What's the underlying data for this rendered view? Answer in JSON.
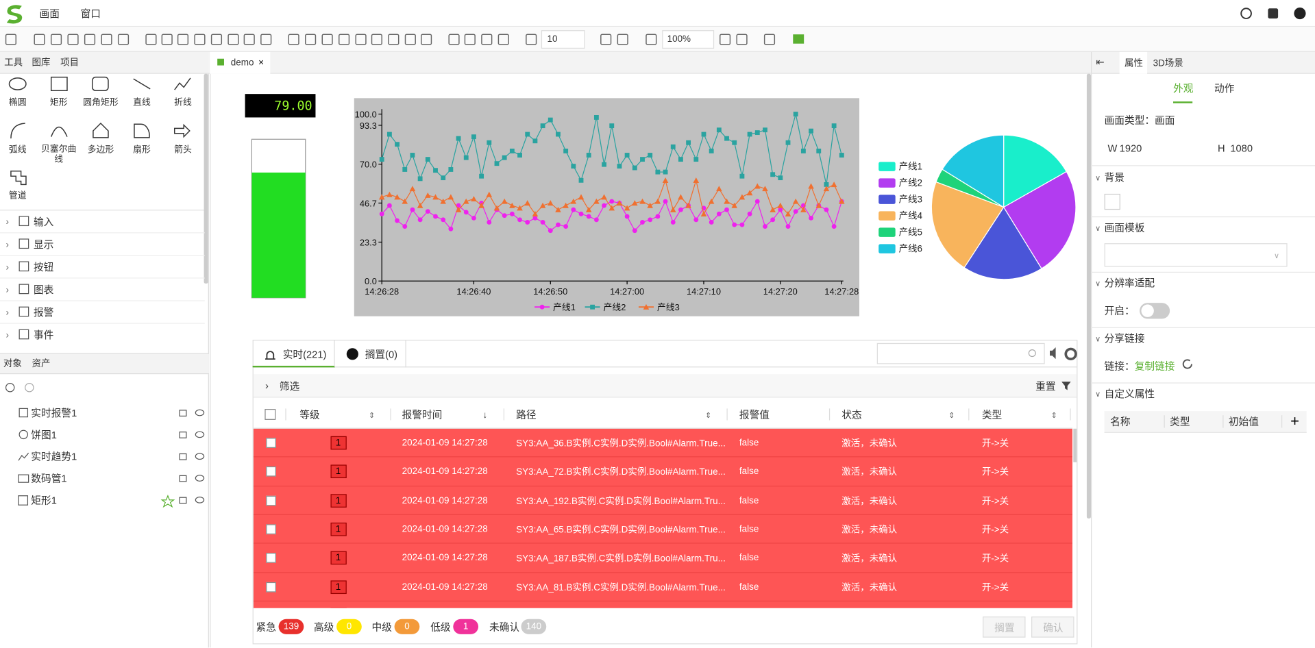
{
  "menu": [
    "画面",
    "窗口"
  ],
  "toolbar": {
    "grid_size": "10",
    "zoom": "100%"
  },
  "left_tabs": [
    "工具",
    "图库",
    "项目"
  ],
  "tools": [
    "椭圆",
    "矩形",
    "圆角矩形",
    "直线",
    "折线",
    "弧线",
    "贝塞尔曲线",
    "多边形",
    "扇形",
    "箭头",
    "管道"
  ],
  "groups": [
    "输入",
    "显示",
    "按钮",
    "图表",
    "报警",
    "事件"
  ],
  "object_tabs": [
    "对象",
    "资产"
  ],
  "objects": [
    "实时报警1",
    "饼图1",
    "实时趋势1",
    "数码管1",
    "矩形1"
  ],
  "doc_tab": "demo",
  "digital_display": "79.00",
  "gauge": {
    "value": 79,
    "lim": [
      0,
      100
    ],
    "color": "#22dd22"
  },
  "chart_data": [
    {
      "type": "line",
      "x": [
        0,
        1,
        2,
        3,
        4,
        5,
        6,
        7,
        8,
        9,
        10,
        11,
        12,
        13,
        14,
        15,
        16,
        17,
        18,
        19,
        20,
        21,
        22,
        23,
        24,
        25,
        26,
        27,
        28,
        29,
        30,
        31,
        32,
        33,
        34,
        35,
        36,
        37,
        38,
        39,
        40,
        41,
        42,
        43,
        44,
        45,
        46,
        47,
        48,
        49,
        50,
        51,
        52,
        53,
        54,
        55,
        56,
        57,
        58,
        59,
        60
      ],
      "series": [
        {
          "name": "产线1",
          "color": "#ee22ee",
          "marker": "circle",
          "values": [
            40.2,
            45.2,
            36.2,
            32.7,
            42.7,
            36.7,
            41.7,
            38.7,
            36.7,
            31.2,
            45.2,
            41.2,
            37.7,
            46.7,
            35.2,
            42.7,
            39.2,
            40.2,
            36.7,
            35.2,
            37.7,
            35.2,
            30.2,
            33.7,
            32.7,
            42.7,
            40.2,
            38.7,
            36.7,
            45.2,
            47.7,
            46.7,
            38.7,
            30.2,
            35.2,
            36.7,
            38.7,
            47.7,
            35.2,
            42.7,
            45.2,
            36.7,
            43.7,
            35.2,
            40.2,
            42.7,
            33.7,
            33.7,
            40.2,
            47.7,
            32.7,
            36.7,
            42.7,
            32.7,
            41.7,
            45.2,
            37.7,
            45.2,
            42.7,
            32.7,
            47.7
          ]
        },
        {
          "name": "产线2",
          "color": "#2aa3a0",
          "marker": "square",
          "values": [
            72.9,
            87.9,
            81.9,
            66.8,
            75.4,
            61.3,
            72.9,
            66.3,
            61.8,
            66.8,
            85.4,
            73.9,
            86.4,
            62.8,
            82.9,
            70.4,
            73.9,
            77.9,
            75.4,
            87.9,
            83.9,
            93.0,
            96.5,
            87.9,
            77.9,
            68.8,
            60.3,
            75.4,
            98.0,
            69.8,
            93.0,
            68.8,
            75.4,
            67.8,
            72.9,
            75.4,
            65.3,
            65.3,
            80.4,
            72.9,
            82.9,
            72.9,
            87.9,
            77.9,
            90.5,
            85.4,
            82.9,
            62.8,
            87.9,
            88.9,
            90.5,
            63.8,
            61.8,
            82.9,
            100,
            77.9,
            89.9,
            77.9,
            57.8,
            93.0,
            75.4
          ]
        },
        {
          "name": "产线3",
          "color": "#f07030",
          "marker": "triangle",
          "values": [
            50.3,
            51.8,
            50.3,
            47.7,
            55.3,
            45.2,
            51.3,
            50.3,
            47.7,
            50.3,
            42.7,
            47.7,
            49.2,
            45.2,
            51.8,
            43.7,
            47.7,
            45.2,
            43.7,
            46.7,
            40.2,
            45.2,
            46.7,
            42.7,
            45.2,
            47.7,
            50.3,
            42.7,
            47.7,
            50.3,
            43.7,
            46.7,
            43.7,
            46.7,
            47.7,
            45.2,
            47.7,
            60.3,
            42.7,
            50.3,
            45.2,
            60.3,
            40.2,
            47.7,
            55.3,
            47.7,
            45.2,
            50.3,
            52.8,
            56.8,
            55.3,
            42.7,
            45.2,
            40.2,
            47.7,
            42.7,
            56.8,
            45.2,
            55.3,
            57.8,
            47.7
          ]
        }
      ],
      "xlim": [
        0,
        60
      ],
      "xticks": [
        {
          "value": 0,
          "label": "14:26:28"
        },
        {
          "value": 12,
          "label": "14:26:40"
        },
        {
          "value": 22,
          "label": "14:26:50"
        },
        {
          "value": 32,
          "label": "14:27:00"
        },
        {
          "value": 42,
          "label": "14:27:10"
        },
        {
          "value": 52,
          "label": "14:27:20"
        },
        {
          "value": 60,
          "label": "14:27:28"
        }
      ],
      "ylim": [
        0,
        100
      ],
      "yticks": [
        {
          "value": 0,
          "label": "0.0"
        },
        {
          "value": 23.3,
          "label": "23.3"
        },
        {
          "value": 46.7,
          "label": "46.7"
        },
        {
          "value": 70,
          "label": "70.0"
        },
        {
          "value": 93.3,
          "label": "93.3"
        },
        {
          "value": 100,
          "label": "100.0"
        }
      ],
      "grid": false,
      "legend": "bottom",
      "background": "#c0c0c0"
    },
    {
      "type": "pie",
      "categories": [
        "产线1",
        "产线2",
        "产线3",
        "产线4",
        "产线5",
        "产线6"
      ],
      "values": [
        16.8,
        24.4,
        18,
        21.5,
        3.1,
        16.2
      ],
      "colors": [
        "#19eecb",
        "#b23cf0",
        "#4a55d8",
        "#f8b45c",
        "#1ed37a",
        "#1fc6e0"
      ],
      "legend": "left"
    }
  ],
  "alarm": {
    "tabs": [
      "实时(221)",
      "搁置(0)"
    ],
    "filter": "筛选",
    "reset": "重置",
    "columns": [
      "等级",
      "报警时间",
      "路径",
      "报警值",
      "状态",
      "类型"
    ],
    "rows": [
      [
        "1",
        "2024-01-09 14:27:28",
        "SY3:AA_36.B实例.C实例.D实例.Bool#Alarm.True...",
        "false",
        "激活，未确认",
        "开->关"
      ],
      [
        "1",
        "2024-01-09 14:27:28",
        "SY3:AA_72.B实例.C实例.D实例.Bool#Alarm.True...",
        "false",
        "激活，未确认",
        "开->关"
      ],
      [
        "1",
        "2024-01-09 14:27:28",
        "SY3:AA_192.B实例.C实例.D实例.Bool#Alarm.Tru...",
        "false",
        "激活，未确认",
        "开->关"
      ],
      [
        "1",
        "2024-01-09 14:27:28",
        "SY3:AA_65.B实例.C实例.D实例.Bool#Alarm.True...",
        "false",
        "激活，未确认",
        "开->关"
      ],
      [
        "1",
        "2024-01-09 14:27:28",
        "SY3:AA_187.B实例.C实例.D实例.Bool#Alarm.Tru...",
        "false",
        "激活，未确认",
        "开->关"
      ],
      [
        "1",
        "2024-01-09 14:27:28",
        "SY3:AA_81.B实例.C实例.D实例.Bool#Alarm.True...",
        "false",
        "激活，未确认",
        "开->关"
      ]
    ],
    "row_color": "#fe5555",
    "summary": [
      {
        "label": "紧急",
        "count": 139,
        "color": "#e8302c"
      },
      {
        "label": "高级",
        "count": 0,
        "color": "#ffe600"
      },
      {
        "label": "中级",
        "count": 0,
        "color": "#f39a3a"
      },
      {
        "label": "低级",
        "count": 1,
        "color": "#f0329a"
      },
      {
        "label": "未确认",
        "count": 140,
        "color": "#cccccc"
      }
    ],
    "buttons": [
      "搁置",
      "确认"
    ]
  },
  "right": {
    "tabs": [
      "属性",
      "3D场景"
    ],
    "subtabs": [
      "外观",
      "动作"
    ],
    "screen_type": "画面类型：画面",
    "w_label": "W",
    "w": 1920,
    "h_label": "H",
    "h": 1080,
    "sections": [
      "背景",
      "画面模板",
      "分辨率适配",
      "分享链接",
      "自定义属性"
    ],
    "enable": "开启：",
    "link_label": "链接：",
    "copy_link": "复制链接",
    "custom_columns": [
      "名称",
      "类型",
      "初始值"
    ]
  }
}
